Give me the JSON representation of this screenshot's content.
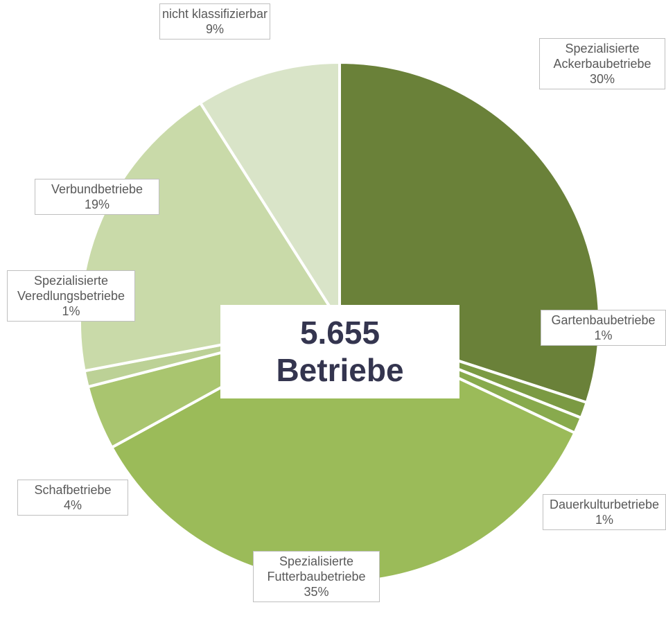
{
  "chart_data": {
    "type": "pie",
    "categories": [
      "Spezialisierte Ackerbaubetriebe",
      "Gartenbaubetriebe",
      "Dauerkulturbetriebe",
      "Spezialisierte Futterbaubetriebe",
      "Schafbetriebe",
      "Spezialisierte Veredlungsbetriebe",
      "Verbundbetriebe",
      "nicht klassifizierbar"
    ],
    "values": [
      30,
      1,
      1,
      35,
      4,
      1,
      19,
      9
    ],
    "value_labels": [
      "30%",
      "1%",
      "1%",
      "35%",
      "4%",
      "1%",
      "19%",
      "9%"
    ],
    "colors": [
      "#6a8139",
      "#7b9a43",
      "#88aa4d",
      "#9bbb59",
      "#a9c56f",
      "#bcd196",
      "#c9daa9",
      "#d9e4c8"
    ],
    "center_label": [
      "5.655",
      "Betriebe"
    ]
  }
}
